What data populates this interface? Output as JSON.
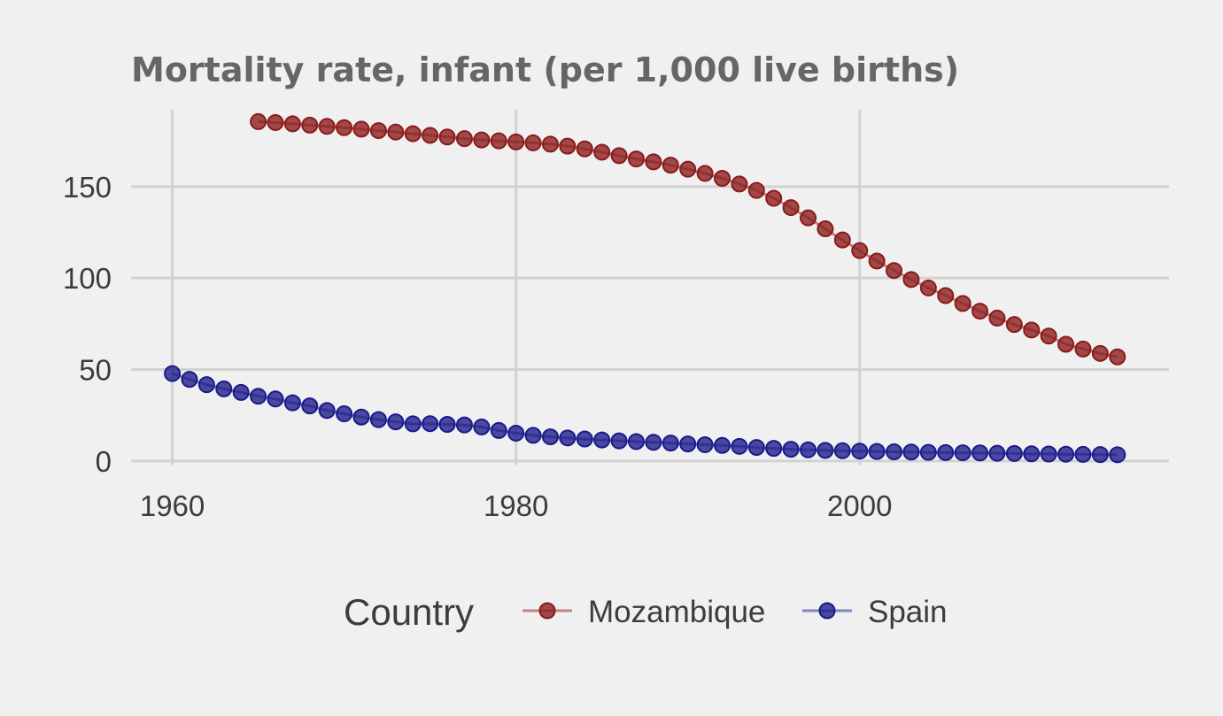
{
  "chart_data": {
    "type": "line",
    "title": "Mortality rate, infant (per 1,000 live births)",
    "xlabel": "",
    "ylabel": "",
    "xlim": [
      1957.6,
      2018
    ],
    "ylim": [
      -2,
      192
    ],
    "x_ticks": [
      1960,
      1980,
      2000
    ],
    "y_ticks": [
      0,
      50,
      100,
      150
    ],
    "grid": true,
    "legend": {
      "title": "Country",
      "position": "bottom"
    },
    "series": [
      {
        "name": "Mozambique",
        "color": "#8b1a1a",
        "x": [
          1965,
          1966,
          1967,
          1968,
          1969,
          1970,
          1971,
          1972,
          1973,
          1974,
          1975,
          1976,
          1977,
          1978,
          1979,
          1980,
          1981,
          1982,
          1983,
          1984,
          1985,
          1986,
          1987,
          1988,
          1989,
          1990,
          1991,
          1992,
          1993,
          1994,
          1995,
          1996,
          1997,
          1998,
          1999,
          2000,
          2001,
          2002,
          2003,
          2004,
          2005,
          2006,
          2007,
          2008,
          2009,
          2010,
          2011,
          2012,
          2013,
          2014,
          2015
        ],
        "values": [
          185.5,
          185.0,
          184.3,
          183.6,
          182.9,
          182.2,
          181.4,
          180.6,
          179.8,
          178.9,
          178.0,
          177.1,
          176.2,
          175.5,
          175.0,
          174.4,
          173.9,
          173.2,
          172.1,
          170.6,
          168.8,
          166.9,
          165.1,
          163.5,
          161.7,
          159.5,
          157.2,
          154.5,
          151.4,
          147.9,
          143.6,
          138.5,
          132.9,
          126.9,
          120.8,
          115.0,
          109.3,
          104.1,
          99.2,
          94.6,
          90.4,
          86.1,
          81.9,
          78.1,
          74.6,
          71.6,
          68.3,
          63.8,
          61.2,
          58.8,
          56.9
        ]
      },
      {
        "name": "Spain",
        "color": "#1a1a8b",
        "x": [
          1960,
          1961,
          1962,
          1963,
          1964,
          1965,
          1966,
          1967,
          1968,
          1969,
          1970,
          1971,
          1972,
          1973,
          1974,
          1975,
          1976,
          1977,
          1978,
          1979,
          1980,
          1981,
          1982,
          1983,
          1984,
          1985,
          1986,
          1987,
          1988,
          1989,
          1990,
          1991,
          1992,
          1993,
          1994,
          1995,
          1996,
          1997,
          1998,
          1999,
          2000,
          2001,
          2002,
          2003,
          2004,
          2005,
          2006,
          2007,
          2008,
          2009,
          2010,
          2011,
          2012,
          2013,
          2014,
          2015
        ],
        "values": [
          47.8,
          44.6,
          41.7,
          39.4,
          37.5,
          35.4,
          33.9,
          31.8,
          30.1,
          27.6,
          25.8,
          24.0,
          22.6,
          21.4,
          20.3,
          20.4,
          20.0,
          19.7,
          18.6,
          16.7,
          15.2,
          14.0,
          13.2,
          12.6,
          12.0,
          11.5,
          11.0,
          10.6,
          10.2,
          9.8,
          9.3,
          8.9,
          8.5,
          8.0,
          7.4,
          6.9,
          6.4,
          6.1,
          5.8,
          5.6,
          5.4,
          5.2,
          5.0,
          4.9,
          4.7,
          4.6,
          4.5,
          4.4,
          4.2,
          4.1,
          3.9,
          3.8,
          3.7,
          3.6,
          3.5,
          3.4
        ]
      }
    ]
  }
}
